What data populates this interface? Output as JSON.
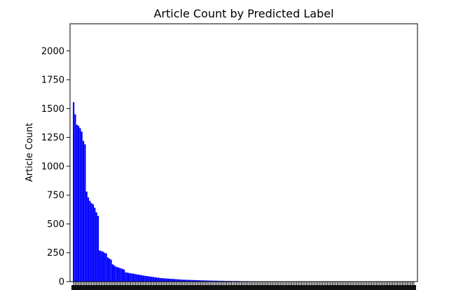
{
  "chart_data": {
    "type": "bar",
    "title": "Article Count by Predicted Label",
    "xlabel": "",
    "ylabel": "Article Count",
    "ylim": [
      0,
      2235
    ],
    "yticks": [
      0,
      250,
      500,
      750,
      1000,
      1250,
      1500,
      1750,
      2000
    ],
    "bar_color": "#0000ff",
    "grid": false,
    "legend": "none",
    "values": [
      1555,
      1450,
      1360,
      1350,
      1330,
      1300,
      1220,
      1190,
      780,
      730,
      700,
      680,
      670,
      640,
      600,
      570,
      270,
      265,
      260,
      250,
      245,
      210,
      200,
      190,
      150,
      140,
      130,
      125,
      120,
      115,
      110,
      105,
      80,
      78,
      75,
      72,
      70,
      68,
      65,
      62,
      60,
      58,
      55,
      52,
      50,
      48,
      46,
      44,
      42,
      40,
      38,
      36,
      34,
      32,
      30,
      29,
      28,
      27,
      26,
      25,
      24,
      23,
      22,
      21,
      20,
      19,
      18,
      17,
      16,
      16,
      15,
      15,
      14,
      14,
      13,
      13,
      12,
      12,
      11,
      11,
      10,
      10,
      10,
      9,
      9,
      9,
      8,
      8,
      8,
      7,
      7,
      7,
      7,
      6,
      6,
      6,
      6,
      5,
      5,
      5,
      5,
      5,
      4,
      4,
      4,
      4,
      4,
      4,
      3,
      3,
      3,
      3,
      3,
      3,
      3,
      3,
      3,
      2,
      2,
      2,
      2,
      2,
      2,
      2,
      2,
      2,
      2,
      2,
      2,
      1,
      1,
      1,
      1,
      1,
      1,
      1,
      1,
      1,
      1,
      1,
      1,
      1,
      1,
      1,
      1,
      1,
      1,
      1,
      1,
      1,
      1,
      1,
      1,
      1,
      1,
      1,
      1,
      1,
      1,
      1,
      1,
      1,
      1,
      1,
      1,
      1,
      1,
      1,
      1,
      1,
      1,
      1,
      1,
      1,
      1,
      1,
      1,
      1,
      1,
      1,
      1,
      1,
      1,
      1,
      1,
      1,
      1,
      1,
      1,
      1,
      1,
      1,
      1,
      1,
      1,
      1,
      1,
      1,
      1,
      1,
      1,
      1,
      1,
      1,
      1,
      1,
      1,
      1,
      1,
      1
    ]
  }
}
